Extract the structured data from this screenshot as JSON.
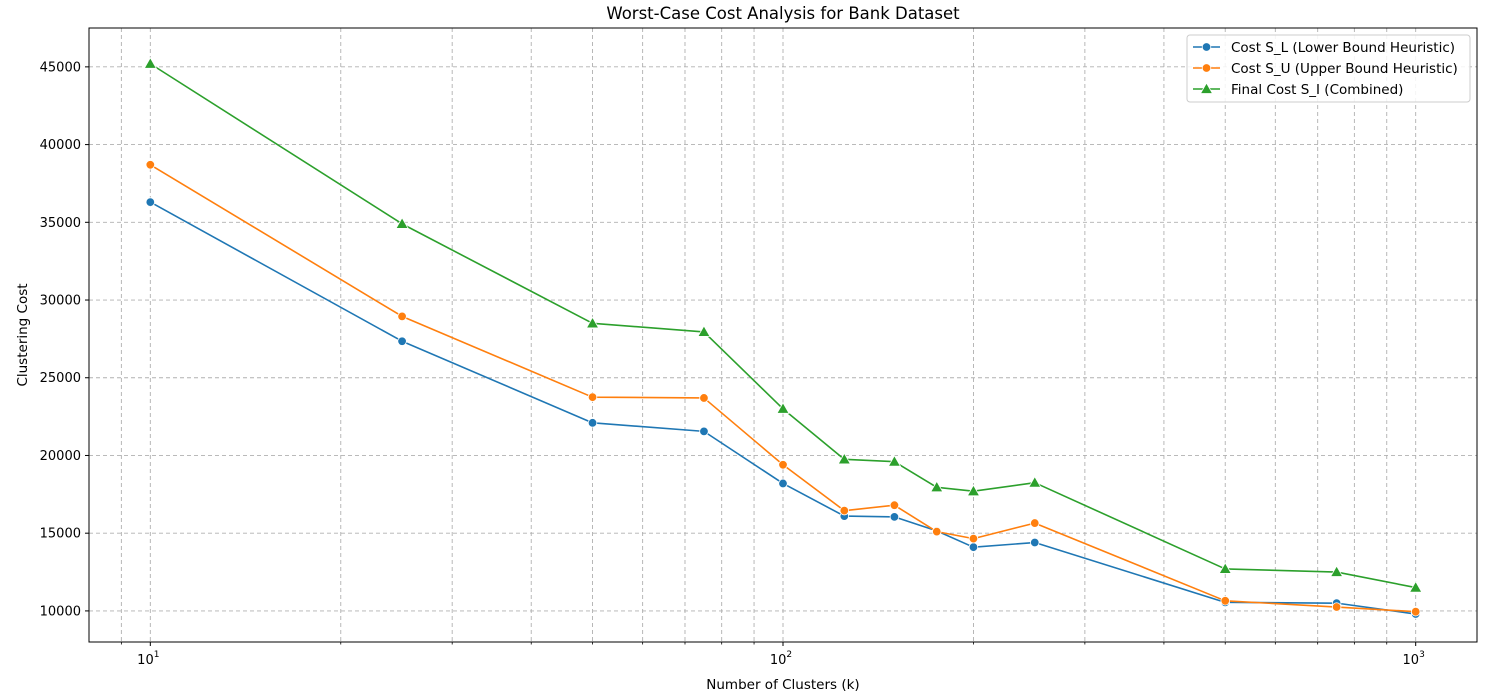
{
  "chart_data": {
    "type": "line",
    "title": "Worst-Case Cost Analysis for Bank Dataset",
    "xlabel": "Number of Clusters (k)",
    "ylabel": "Clustering Cost",
    "xscale": "log",
    "xlim": [
      8,
      1250
    ],
    "ylim": [
      8000,
      47500
    ],
    "grid": true,
    "grid_style": "dashed",
    "legend_position": "upper right",
    "x": [
      10,
      25,
      50,
      75,
      100,
      125,
      150,
      175,
      200,
      250,
      500,
      750,
      1000
    ],
    "xticks": [
      {
        "base": "10",
        "exp": "1",
        "value": 10
      },
      {
        "base": "10",
        "exp": "2",
        "value": 100
      },
      {
        "base": "10",
        "exp": "3",
        "value": 1000
      }
    ],
    "yticks": [
      {
        "label": "10000",
        "value": 10000
      },
      {
        "label": "15000",
        "value": 15000
      },
      {
        "label": "20000",
        "value": 20000
      },
      {
        "label": "25000",
        "value": 25000
      },
      {
        "label": "30000",
        "value": 30000
      },
      {
        "label": "35000",
        "value": 35000
      },
      {
        "label": "40000",
        "value": 40000
      },
      {
        "label": "45000",
        "value": 45000
      }
    ],
    "series": [
      {
        "name": "Cost S_L (Lower Bound Heuristic)",
        "color": "#1f77b4",
        "marker": "circle",
        "values": [
          36300,
          27350,
          22100,
          21550,
          18200,
          16100,
          16050,
          15150,
          14100,
          14400,
          10550,
          10500,
          9800
        ]
      },
      {
        "name": "Cost S_U (Upper Bound Heuristic)",
        "color": "#ff7f0e",
        "marker": "circle",
        "values": [
          38700,
          28950,
          23750,
          23700,
          19400,
          16450,
          16800,
          15100,
          14650,
          15650,
          10650,
          10250,
          9950
        ]
      },
      {
        "name": "Final Cost S_I (Combined)",
        "color": "#2ca02c",
        "marker": "triangle",
        "values": [
          45200,
          34900,
          28500,
          27950,
          23000,
          19750,
          19600,
          17950,
          17700,
          18250,
          12700,
          12500,
          11500
        ]
      }
    ]
  }
}
